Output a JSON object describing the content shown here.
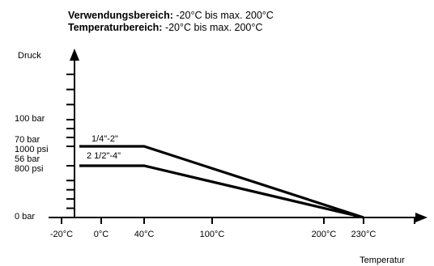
{
  "chart_data": {
    "type": "line",
    "header": [
      {
        "bold": "Verwendungsbereich:",
        "text": " -20°C bis max. 200°C"
      },
      {
        "bold": "Temperaturbereich:",
        "text": " -20°C bis max. 200°C"
      }
    ],
    "ylabel": "Druck",
    "xlabel": "Temperatur",
    "x_ticks": [
      {
        "value": -20,
        "label": "-20°C"
      },
      {
        "value": 0,
        "label": "0°C"
      },
      {
        "value": 40,
        "label": "40°C"
      },
      {
        "value": 100,
        "label": "100°C"
      },
      {
        "value": 200,
        "label": "200°C"
      },
      {
        "value": 230,
        "label": "230°C"
      }
    ],
    "y_tick_values": [
      0,
      10,
      20,
      30,
      40,
      56,
      70,
      80,
      90,
      100,
      110,
      120,
      130
    ],
    "y_labels": [
      {
        "value": 0,
        "lines": [
          "0 bar"
        ]
      },
      {
        "value": 56,
        "lines": [
          "56 bar",
          "800 psi"
        ]
      },
      {
        "value": 70,
        "lines": [
          "70 bar",
          "1000 psi"
        ]
      },
      {
        "value": 100,
        "lines": [
          "100 bar"
        ]
      }
    ],
    "xlim": [
      -20,
      258
    ],
    "ylim": [
      0,
      145
    ],
    "series": [
      {
        "name": "1/4\"-2\"",
        "points": [
          [
            -20,
            70
          ],
          [
            40,
            70
          ],
          [
            230,
            0
          ]
        ]
      },
      {
        "name": "2 1/2\"-4\"",
        "points": [
          [
            -20,
            56
          ],
          [
            40,
            56
          ],
          [
            230,
            0
          ]
        ]
      }
    ],
    "grid": false
  }
}
